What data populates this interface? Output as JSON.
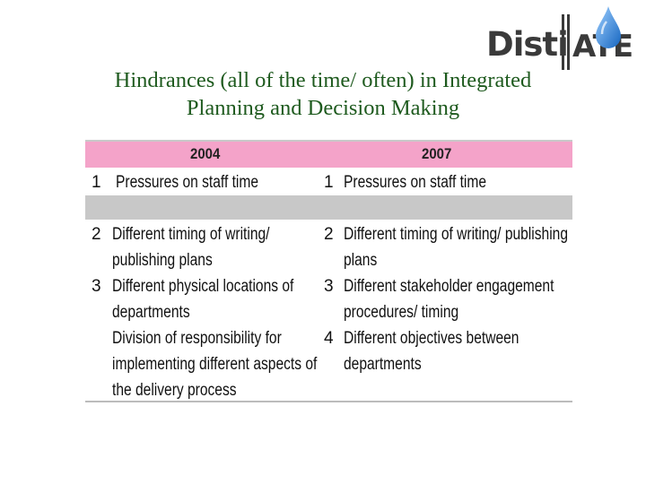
{
  "logo": {
    "left_text": "Disti",
    "right_text": "ATE",
    "drop_color": "#1f7fd6"
  },
  "title": {
    "line1": "Hindrances (all of the time/ often) in Integrated",
    "line2": "Planning and Decision Making"
  },
  "table": {
    "header": {
      "col1": "2004",
      "col2": "2007",
      "color": "#f4a3c9"
    },
    "rows2004": [
      {
        "num": "1",
        "lines": [
          "Pressures on staff time"
        ]
      },
      {
        "num": "2",
        "lines": [
          "Different timing of writing/",
          "publishing plans"
        ]
      },
      {
        "num": "3",
        "lines": [
          "Different physical locations of",
          "departments"
        ]
      },
      {
        "num": "",
        "lines": [
          "Division of responsibility for",
          "implementing different aspects of",
          "the delivery process"
        ]
      }
    ],
    "rows2007": [
      {
        "num": "1",
        "lines": [
          "Pressures on staff time"
        ]
      },
      {
        "num": "2",
        "lines": [
          "Different timing of writing/ publishing",
          "plans"
        ]
      },
      {
        "num": "3",
        "lines": [
          "Different stakeholder engagement",
          "procedures/ timing"
        ]
      },
      {
        "num": "4",
        "lines": [
          "Different objectives between",
          "departments"
        ]
      }
    ]
  }
}
